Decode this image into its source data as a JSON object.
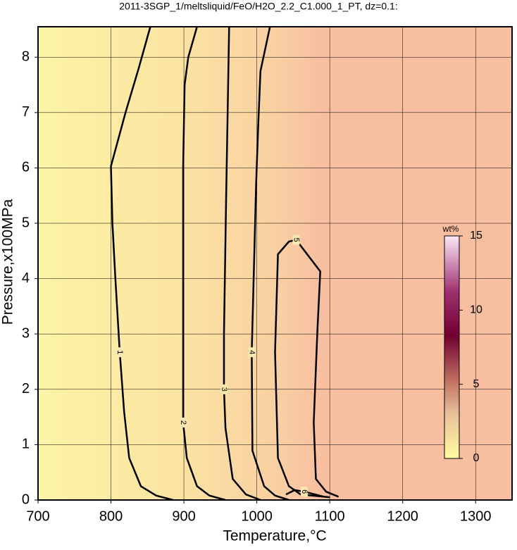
{
  "chart_data": {
    "type": "contour",
    "title": "2011-3SGP_1/meltsliquid/FeO/H2O_2.2_C1.000_1_PT, dz=0.1:",
    "x_label": "Temperature,°C",
    "y_label": "Pressure,x100MPa",
    "xlim": [
      700,
      1350
    ],
    "ylim": [
      0,
      8.55
    ],
    "xticks": [
      700,
      800,
      900,
      1000,
      1100,
      1200,
      1300
    ],
    "yticks": [
      0,
      1,
      2,
      3,
      4,
      5,
      6,
      7,
      8
    ],
    "grid": true,
    "colorbar": {
      "label": "wt%",
      "lim": [
        0,
        15
      ],
      "ticks": [
        0,
        5,
        10,
        15
      ]
    },
    "series": [
      {
        "level": 1,
        "x": [
          854,
          838,
          820,
          800,
          802,
          806,
          812,
          818,
          825,
          841,
          862,
          885
        ],
        "y": [
          8.55,
          7.8,
          7.0,
          6.03,
          5.0,
          4.0,
          2.67,
          1.6,
          0.76,
          0.25,
          0.08,
          0
        ]
      },
      {
        "level": 2,
        "x": [
          918,
          906,
          901,
          899,
          899,
          899,
          904,
          918,
          935,
          957
        ],
        "y": [
          8.55,
          8.0,
          7.5,
          6.0,
          4.0,
          1.4,
          0.76,
          0.25,
          0.08,
          0
        ]
      },
      {
        "level": 3,
        "x": [
          962,
          960,
          958,
          955,
          955,
          957,
          967,
          985,
          1005
        ],
        "y": [
          8.55,
          7.0,
          5.5,
          3.0,
          2.0,
          1.3,
          0.38,
          0.1,
          0
        ]
      },
      {
        "level": 4,
        "x": [
          1018,
          1005,
          1002,
          999,
          993,
          994,
          1010,
          1025,
          1044
        ],
        "y": [
          8.55,
          7.75,
          6.8,
          5.7,
          2.67,
          0.89,
          0.25,
          0.08,
          0
        ]
      },
      {
        "level": 5,
        "x": [
          1100,
          1060,
          1044,
          1029,
          1025,
          1029,
          1044,
          1054,
          1087,
          1083,
          1078,
          1081,
          1095,
          1112
        ],
        "y": [
          0.05,
          0.1,
          0.25,
          0.76,
          2.67,
          4.44,
          4.67,
          4.7,
          4.13,
          3.05,
          1.4,
          0.38,
          0.15,
          0.06
        ]
      },
      {
        "level": 6,
        "x": [
          1040,
          1052,
          1065,
          1080,
          1092
        ],
        "y": [
          0.1,
          0.18,
          0.15,
          0.1,
          0.06
        ]
      }
    ]
  }
}
